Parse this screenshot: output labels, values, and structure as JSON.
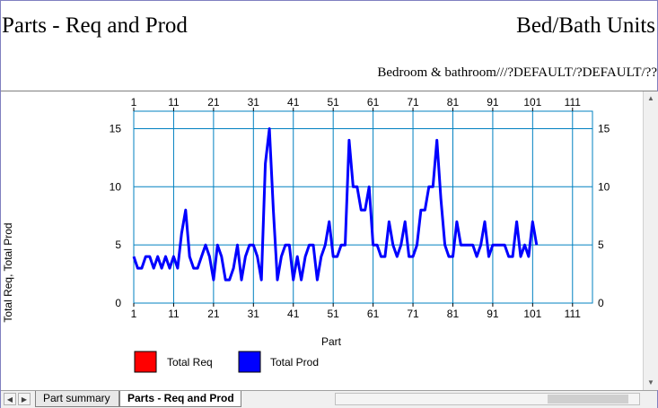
{
  "report": {
    "title_left": "Parts - Req and Prod",
    "title_right": "Bed/Bath Units",
    "subtitle": "Bedroom & bathroom///?DEFAULT/?DEFAULT/??"
  },
  "tabs": [
    {
      "label": "Part summary",
      "active": false
    },
    {
      "label": "Parts - Req and Prod",
      "active": true
    }
  ],
  "colors": {
    "total_req": "#ff0000",
    "total_prod": "#0000ff",
    "grid": "#0080c0"
  },
  "icons": {
    "first": "first-sheet-icon",
    "prev": "prev-sheet-icon",
    "up": "scroll-up-icon",
    "down": "scroll-down-icon"
  },
  "chart_data": {
    "type": "line",
    "xlabel": "Part",
    "ylabel": "Total Req, Total Prod",
    "xlim": [
      1,
      116
    ],
    "ylim": [
      0,
      16.5
    ],
    "xticks": [
      1,
      11,
      21,
      31,
      41,
      51,
      61,
      71,
      81,
      91,
      101,
      111
    ],
    "yticks": [
      0,
      5,
      10,
      15
    ],
    "grid": true,
    "legend_position": "bottom-left",
    "legend": [
      "Total Req",
      "Total Prod"
    ],
    "series": [
      {
        "name": "Total Req",
        "color": "#ff0000",
        "values": []
      },
      {
        "name": "Total Prod",
        "color": "#0000ff",
        "x": [
          1,
          2,
          3,
          4,
          5,
          6,
          7,
          8,
          9,
          10,
          11,
          12,
          13,
          14,
          15,
          16,
          17,
          18,
          19,
          20,
          21,
          22,
          23,
          24,
          25,
          26,
          27,
          28,
          29,
          30,
          31,
          32,
          33,
          34,
          35,
          36,
          37,
          38,
          39,
          40,
          41,
          42,
          43,
          44,
          45,
          46,
          47,
          48,
          49,
          50,
          51,
          52,
          53,
          54,
          55,
          56,
          57,
          58,
          59,
          60,
          61,
          62,
          63,
          64,
          65,
          66,
          67,
          68,
          69,
          70,
          71,
          72,
          73,
          74,
          75,
          76,
          77,
          78,
          79,
          80,
          81,
          82,
          83,
          84,
          85,
          86,
          87,
          88,
          89,
          90,
          91,
          92,
          93,
          94,
          95,
          96,
          97,
          98,
          99,
          100,
          101,
          102
        ],
        "values": [
          4,
          3,
          3,
          4,
          4,
          3,
          4,
          3,
          4,
          3,
          4,
          3,
          6,
          8,
          4,
          3,
          3,
          4,
          5,
          4,
          2,
          5,
          4,
          2,
          2,
          3,
          5,
          2,
          4,
          5,
          5,
          4,
          2,
          12,
          15,
          8,
          2,
          4,
          5,
          5,
          2,
          4,
          2,
          4,
          5,
          5,
          2,
          4,
          5,
          7,
          4,
          4,
          5,
          5,
          14,
          10,
          10,
          8,
          8,
          10,
          5,
          5,
          4,
          4,
          7,
          5,
          4,
          5,
          7,
          4,
          4,
          5,
          8,
          8,
          10,
          10,
          14,
          9,
          5,
          4,
          4,
          7,
          5,
          5,
          5,
          5,
          4,
          5,
          7,
          4,
          5,
          5,
          5,
          5,
          4,
          4,
          7,
          4,
          5,
          4,
          7,
          5
        ]
      }
    ]
  }
}
